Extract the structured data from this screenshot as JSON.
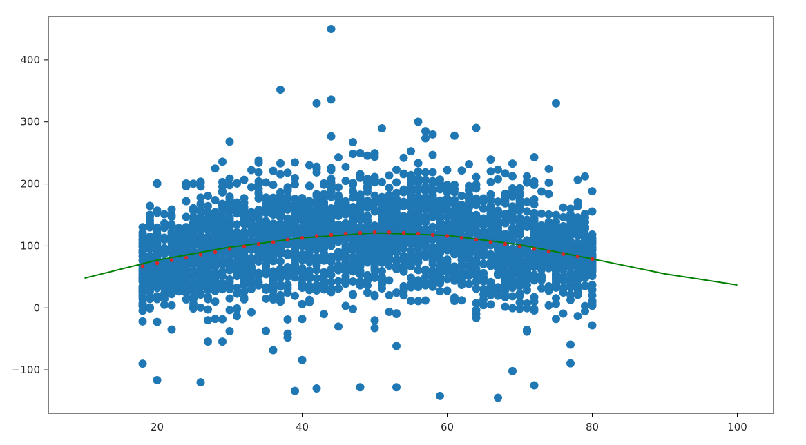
{
  "chart_data": {
    "type": "scatter",
    "title": "",
    "xlabel": "",
    "ylabel": "",
    "xlim": [
      5,
      105
    ],
    "ylim": [
      -170,
      470
    ],
    "x_ticks": [
      20,
      40,
      60,
      80,
      100
    ],
    "y_ticks": [
      -100,
      0,
      100,
      200,
      300,
      400
    ],
    "grid": false,
    "legend": "none",
    "colors": {
      "scatter": "#1f77b4",
      "fit_line": "#008000",
      "fit_points": "#d62728"
    },
    "series": [
      {
        "kind": "scatter",
        "x_range": [
          18,
          80
        ],
        "x_step": 1,
        "points_per_x": 48,
        "y_center_rule": "quadratic peak near x=49 at about 121",
        "y_spread": "approximately -100 to 300 around the fitted curve",
        "notable_outliers": [
          {
            "x": 44,
            "y": 450
          },
          {
            "x": 37,
            "y": 352
          },
          {
            "x": 44,
            "y": 336
          },
          {
            "x": 18,
            "y": -90
          },
          {
            "x": 26,
            "y": -120
          },
          {
            "x": 39,
            "y": -134
          },
          {
            "x": 42,
            "y": -130
          },
          {
            "x": 48,
            "y": -128
          },
          {
            "x": 53,
            "y": -128
          },
          {
            "x": 59,
            "y": -142
          },
          {
            "x": 69,
            "y": -102
          }
        ]
      },
      {
        "kind": "line",
        "x": [
          10,
          20,
          30,
          40,
          50,
          60,
          70,
          80,
          90,
          100
        ],
        "y": [
          48,
          77,
          98,
          113,
          121,
          117,
          102,
          79,
          55,
          37
        ]
      },
      {
        "kind": "points",
        "x": [
          18,
          20,
          22,
          24,
          26,
          28,
          30,
          32,
          34,
          36,
          38,
          40,
          42,
          44,
          46,
          48,
          50,
          52,
          54,
          56,
          58,
          60,
          62,
          64,
          66,
          68,
          70,
          72,
          74,
          76,
          78,
          80
        ],
        "y": [
          67,
          72,
          77,
          81,
          86,
          90,
          95,
          99,
          103,
          106,
          110,
          113,
          116,
          118,
          120,
          121,
          122,
          122,
          121,
          120,
          118,
          116,
          113,
          110,
          106,
          103,
          99,
          95,
          91,
          87,
          83,
          79
        ]
      }
    ]
  }
}
